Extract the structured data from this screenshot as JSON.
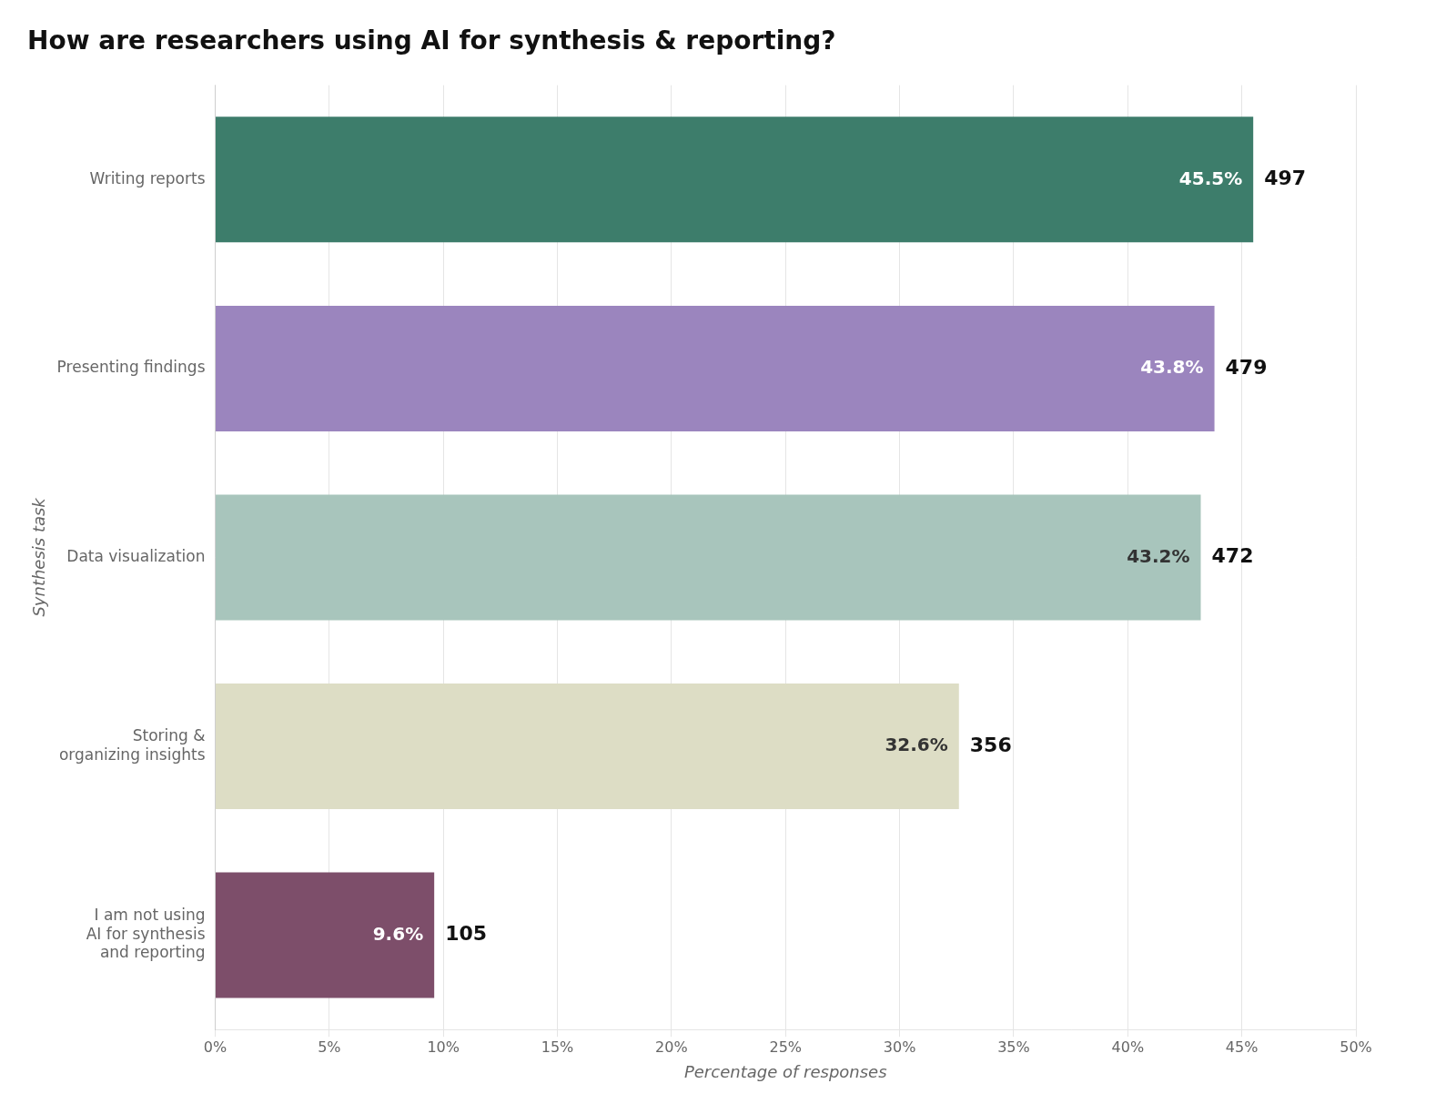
{
  "chart_data": {
    "type": "bar",
    "orientation": "horizontal",
    "title": "How are researchers using AI for synthesis & reporting?",
    "xlabel": "Percentage of responses",
    "ylabel": "Synthesis task",
    "categories": [
      "Writing reports",
      "Presenting findings",
      "Data visualization",
      "Storing &\norganizing insights",
      "I am not using\nAI for synthesis\nand reporting"
    ],
    "values": [
      45.5,
      43.8,
      43.2,
      32.6,
      9.6
    ],
    "value_labels": [
      "45.5%",
      "43.8%",
      "43.2%",
      "32.6%",
      "9.6%"
    ],
    "counts": [
      497,
      479,
      472,
      356,
      105
    ],
    "colors": [
      "#3d7d6b",
      "#9b85be",
      "#a8c5bc",
      "#ddddc5",
      "#7d4e6a"
    ],
    "xlim": [
      0,
      50
    ],
    "xticks": [
      {
        "value": 0,
        "label": "0%"
      },
      {
        "value": 5,
        "label": "5%"
      },
      {
        "value": 10,
        "label": "10%"
      },
      {
        "value": 15,
        "label": "15%"
      },
      {
        "value": 20,
        "label": "20%"
      },
      {
        "value": 25,
        "label": "25%"
      },
      {
        "value": 30,
        "label": "30%"
      },
      {
        "value": 35,
        "label": "35%"
      },
      {
        "value": 40,
        "label": "40%"
      },
      {
        "value": 45,
        "label": "45%"
      },
      {
        "value": 50,
        "label": "50%"
      }
    ],
    "grid": true,
    "data_labels": true
  }
}
